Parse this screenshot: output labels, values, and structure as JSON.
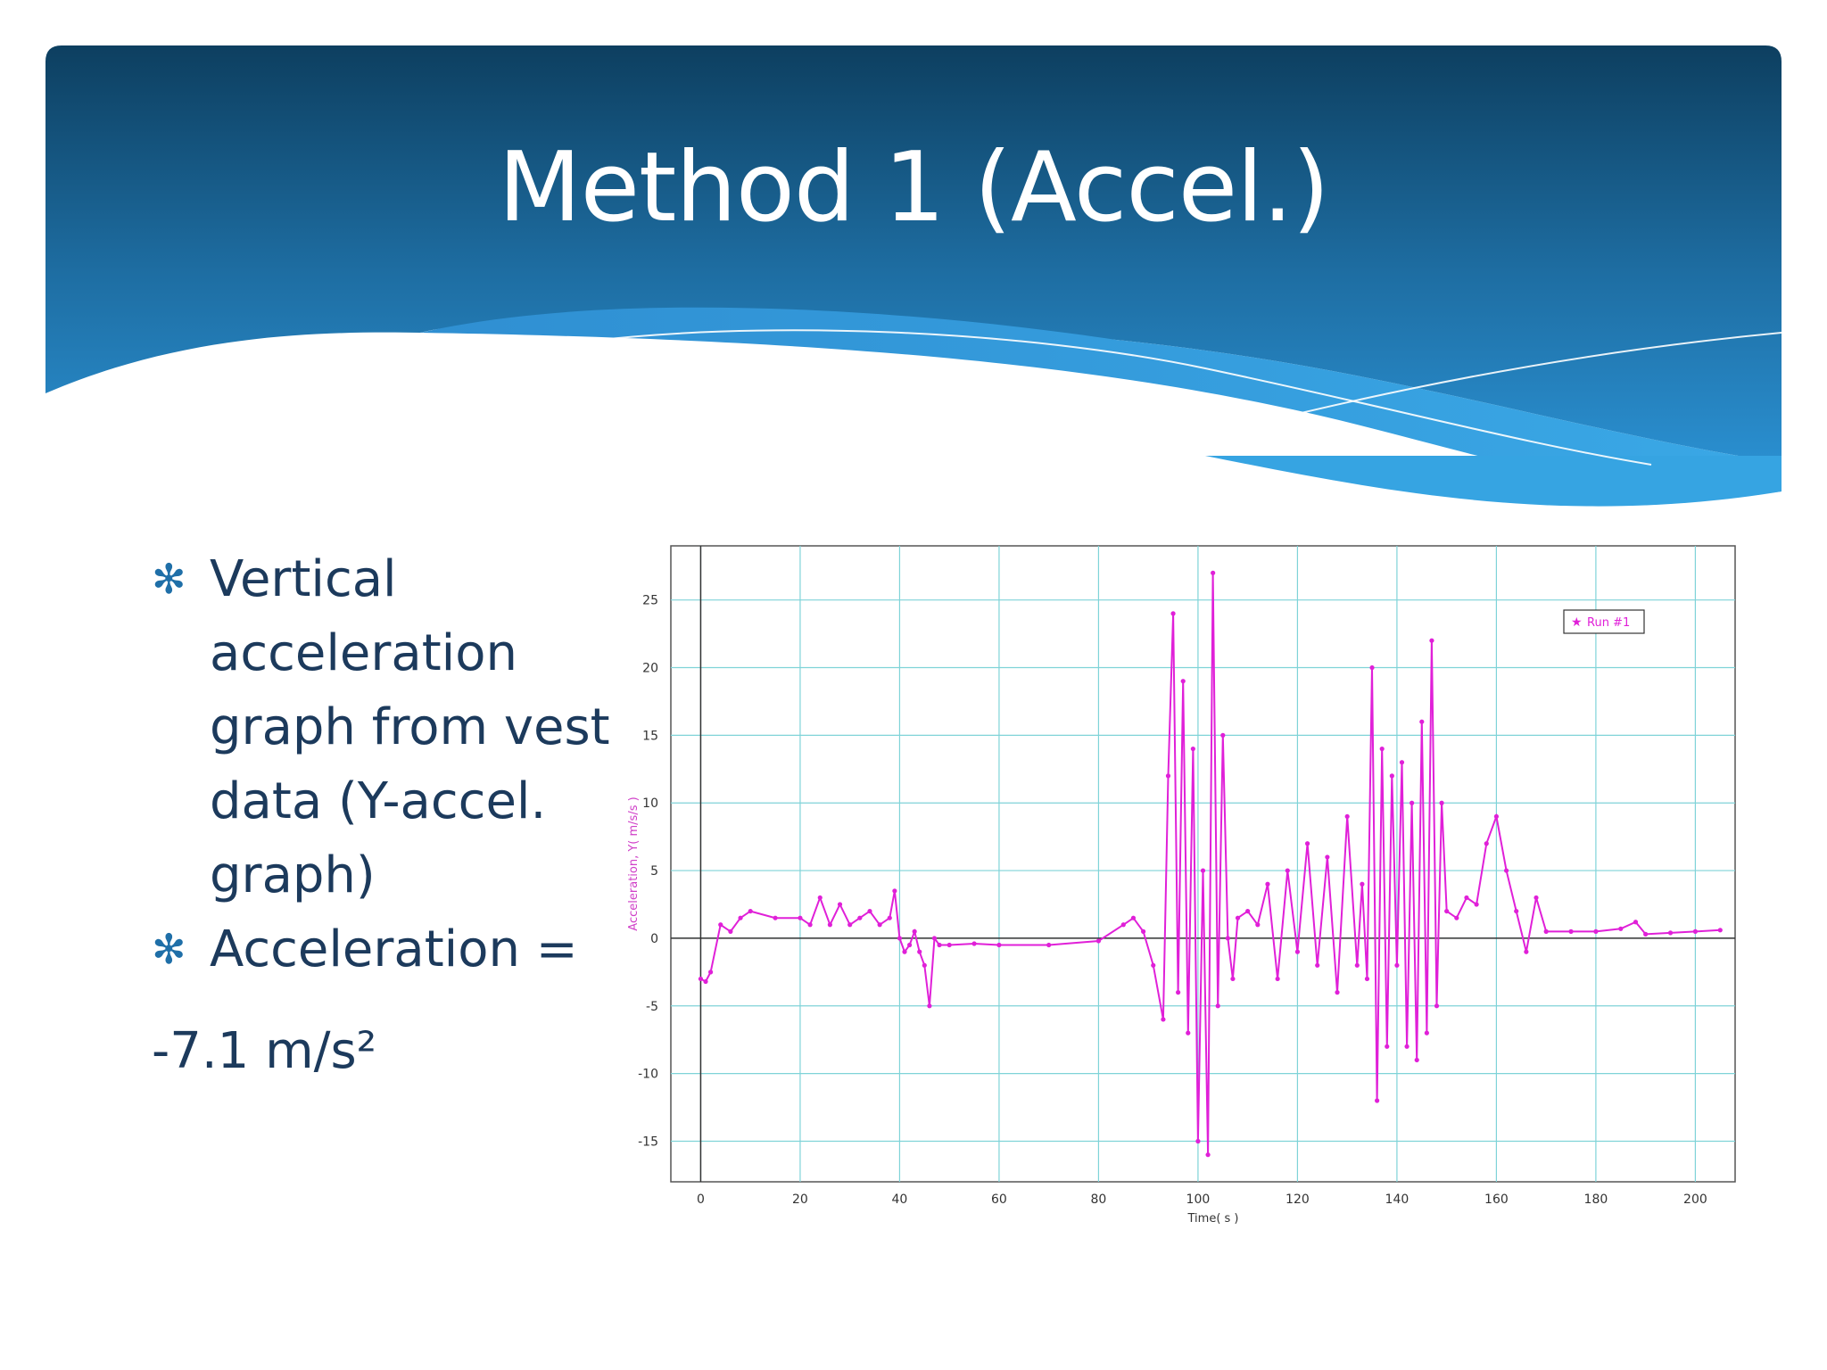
{
  "slide": {
    "title": "Method 1 (Accel.)",
    "bullets": [
      "Vertical acceleration graph from vest data (Y-accel. graph)",
      "Acceleration ="
    ],
    "continuation": "-7.1 m/s²",
    "colors": {
      "header_top": "#0d3f60",
      "header_bottom": "#2a8fd0",
      "wave": "#36a4e2",
      "text": "#1c3a5c"
    }
  },
  "chart_data": {
    "type": "line",
    "xlabel": "Time( s )",
    "ylabel": "Acceleration, Y( m/s/s )",
    "xlim": [
      -6,
      208
    ],
    "ylim": [
      -18,
      29
    ],
    "xticks": [
      0,
      20,
      40,
      60,
      80,
      100,
      120,
      140,
      160,
      180,
      200
    ],
    "yticks": [
      -15,
      -10,
      -5,
      0,
      5,
      10,
      15,
      20,
      25
    ],
    "grid": true,
    "legend": "top-right",
    "series": [
      {
        "name": "Run #1",
        "color": "#e020d8",
        "x": [
          0,
          1,
          2,
          4,
          6,
          8,
          10,
          15,
          20,
          22,
          24,
          26,
          28,
          30,
          32,
          34,
          36,
          38,
          39,
          40,
          41,
          42,
          43,
          44,
          45,
          46,
          47,
          48,
          50,
          55,
          60,
          70,
          80,
          85,
          87,
          89,
          91,
          93,
          94,
          95,
          96,
          97,
          98,
          99,
          100,
          101,
          102,
          103,
          104,
          105,
          106,
          107,
          108,
          110,
          112,
          114,
          116,
          118,
          120,
          122,
          124,
          126,
          128,
          130,
          132,
          133,
          134,
          135,
          136,
          137,
          138,
          139,
          140,
          141,
          142,
          143,
          144,
          145,
          146,
          147,
          148,
          149,
          150,
          152,
          154,
          156,
          158,
          160,
          162,
          164,
          166,
          168,
          170,
          175,
          180,
          185,
          188,
          190,
          195,
          200,
          205
        ],
        "y": [
          -3,
          -3.2,
          -2.5,
          1,
          0.5,
          1.5,
          2,
          1.5,
          1.5,
          1,
          3,
          1,
          2.5,
          1,
          1.5,
          2,
          1,
          1.5,
          3.5,
          0,
          -1,
          -0.5,
          0.5,
          -1,
          -2,
          -5,
          0,
          -0.5,
          -0.5,
          -0.4,
          -0.5,
          -0.5,
          -0.2,
          1,
          1.5,
          0.5,
          -2,
          -6,
          12,
          24,
          -4,
          19,
          -7,
          14,
          -15,
          5,
          -16,
          27,
          -5,
          15,
          0,
          -3,
          1.5,
          2,
          1,
          4,
          -3,
          5,
          -1,
          7,
          -2,
          6,
          -4,
          9,
          -2,
          4,
          -3,
          20,
          -12,
          14,
          -8,
          12,
          -2,
          13,
          -8,
          10,
          -9,
          16,
          -7,
          22,
          -5,
          10,
          2,
          1.5,
          3,
          2.5,
          7,
          9,
          5,
          2,
          -1,
          3,
          0.5,
          0.5,
          0.5,
          0.7,
          1.2,
          0.3,
          0.4,
          0.5,
          0.6
        ]
      }
    ]
  }
}
